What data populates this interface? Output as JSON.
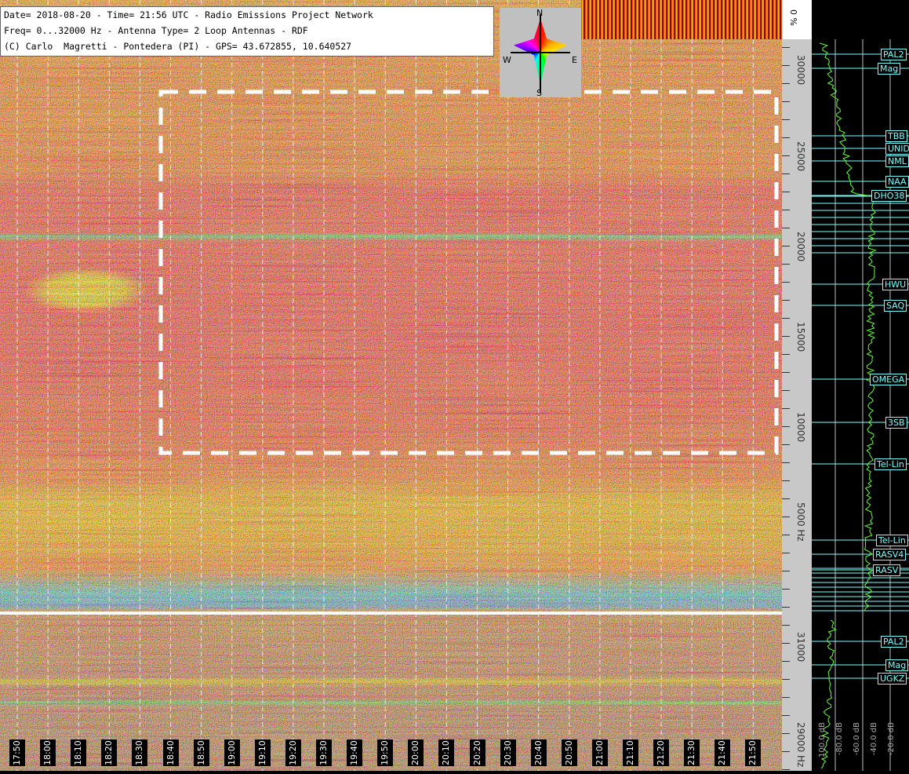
{
  "header": {
    "lines": [
      "Date= 2018-08-20 - Time= 21:56 UTC - Radio Emissions Project Network",
      "Freq= 0...32000 Hz - Antenna Type= 2 Loop Antennas - RDF",
      "(C) Carlo  Magretti - Pontedera (PI) - GPS= 43.672855, 10.640527"
    ]
  },
  "compass": {
    "n": "N",
    "e": "E",
    "w": "W",
    "s": "S"
  },
  "top_scale": "0 %",
  "time_labels": [
    "17:50",
    "18:00",
    "18:10",
    "18:20",
    "18:30",
    "18:40",
    "18:50",
    "19:00",
    "19:10",
    "19:20",
    "19:30",
    "19:40",
    "19:50",
    "20:00",
    "20:10",
    "20:20",
    "20:30",
    "20:40",
    "20:50",
    "21:00",
    "21:10",
    "21:20",
    "21:30",
    "21:40",
    "21:50"
  ],
  "freq_labels": [
    "30000",
    "25000",
    "20000",
    "15000",
    "10000",
    "5000 Hz"
  ],
  "lower_freq_labels": [
    "31000",
    "29000 Hz"
  ],
  "stations": [
    "PAL2",
    "Mag",
    "TBB",
    "UNID",
    "NML",
    "NAA",
    "DHO38",
    "HWU",
    "SAQ",
    "OMEGA",
    "3SB",
    "Tel-Lin",
    "Tel-Lin",
    "RASV4",
    "RASV",
    "PAL2",
    "Mag",
    "UGKZ"
  ],
  "db_labels": [
    "-100.0 dB",
    "-80.0 dB",
    "-60.0 dB",
    "-40.0 dB",
    "-20.0 dB"
  ]
}
